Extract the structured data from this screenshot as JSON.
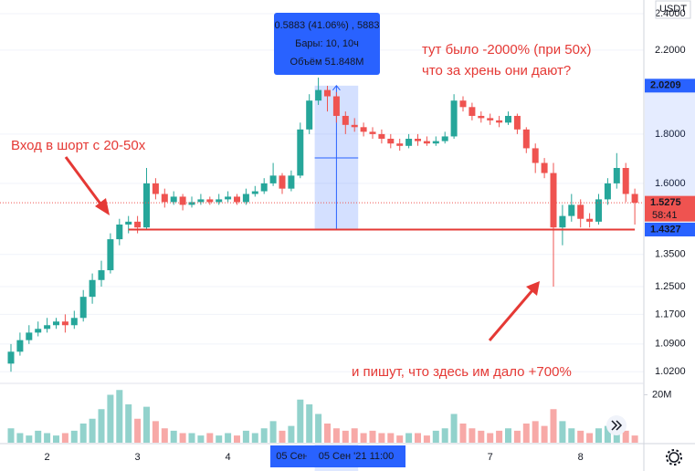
{
  "chart_data": {
    "type": "candlestick",
    "currency": "USDT",
    "categories": [
      null,
      null,
      null,
      null,
      "2",
      null,
      null,
      null,
      null,
      null,
      null,
      null,
      null,
      null,
      "3",
      null,
      null,
      null,
      null,
      null,
      null,
      null,
      null,
      null,
      "4",
      null,
      null,
      null,
      null,
      null,
      null,
      null,
      null,
      null,
      null,
      null,
      null,
      null,
      null,
      null,
      null,
      null,
      null,
      null,
      null,
      null,
      null,
      null,
      null,
      null,
      null,
      null,
      null,
      "7",
      null,
      null,
      null,
      null,
      null,
      null,
      null,
      null,
      null,
      "8",
      null,
      null,
      null,
      null,
      null,
      null
    ],
    "up_color": "#26a69a",
    "down_color": "#ef5350",
    "open": [
      1.04,
      1.07,
      1.1,
      1.12,
      1.13,
      1.14,
      1.15,
      1.14,
      1.16,
      1.22,
      1.27,
      1.3,
      1.4,
      1.45,
      1.46,
      1.44,
      1.6,
      1.56,
      1.53,
      1.55,
      1.52,
      1.53,
      1.54,
      1.53,
      1.54,
      1.55,
      1.53,
      1.56,
      1.57,
      1.6,
      1.63,
      1.58,
      1.63,
      1.82,
      1.95,
      2.0,
      1.97,
      1.88,
      1.84,
      1.83,
      1.81,
      1.8,
      1.78,
      1.76,
      1.75,
      1.78,
      1.77,
      1.76,
      1.77,
      1.79,
      1.95,
      1.92,
      1.88,
      1.87,
      1.86,
      1.85,
      1.88,
      1.82,
      1.74,
      1.68,
      1.64,
      1.44,
      1.48,
      1.52,
      1.47,
      1.46,
      1.54,
      1.6,
      1.66,
      1.56
    ],
    "high": [
      1.09,
      1.12,
      1.14,
      1.15,
      1.16,
      1.16,
      1.17,
      1.18,
      1.24,
      1.29,
      1.33,
      1.42,
      1.47,
      1.48,
      1.48,
      1.66,
      1.62,
      1.58,
      1.57,
      1.56,
      1.55,
      1.56,
      1.55,
      1.56,
      1.57,
      1.56,
      1.58,
      1.59,
      1.62,
      1.68,
      1.64,
      1.65,
      1.85,
      1.98,
      2.06,
      2.02,
      1.99,
      1.9,
      1.87,
      1.85,
      1.83,
      1.82,
      1.8,
      1.78,
      1.8,
      1.8,
      1.79,
      1.79,
      1.81,
      1.98,
      1.97,
      1.94,
      1.9,
      1.89,
      1.88,
      1.9,
      1.89,
      1.83,
      1.76,
      1.7,
      1.68,
      1.52,
      1.56,
      1.54,
      1.49,
      1.56,
      1.62,
      1.72,
      1.68,
      1.58
    ],
    "low": [
      1.02,
      1.06,
      1.09,
      1.11,
      1.12,
      1.13,
      1.12,
      1.13,
      1.15,
      1.2,
      1.25,
      1.29,
      1.38,
      1.42,
      1.42,
      1.43,
      1.54,
      1.51,
      1.52,
      1.5,
      1.51,
      1.52,
      1.52,
      1.52,
      1.53,
      1.52,
      1.52,
      1.55,
      1.56,
      1.59,
      1.56,
      1.57,
      1.62,
      1.8,
      1.93,
      1.9,
      1.85,
      1.8,
      1.81,
      1.79,
      1.78,
      1.76,
      1.74,
      1.73,
      1.74,
      1.75,
      1.75,
      1.75,
      1.76,
      1.78,
      1.9,
      1.86,
      1.85,
      1.84,
      1.83,
      1.84,
      1.8,
      1.72,
      1.64,
      1.62,
      1.25,
      1.38,
      1.46,
      1.44,
      1.44,
      1.45,
      1.52,
      1.58,
      1.53,
      1.45
    ],
    "close": [
      1.07,
      1.1,
      1.12,
      1.13,
      1.14,
      1.15,
      1.14,
      1.16,
      1.22,
      1.27,
      1.3,
      1.4,
      1.45,
      1.46,
      1.44,
      1.6,
      1.56,
      1.53,
      1.55,
      1.52,
      1.53,
      1.54,
      1.53,
      1.54,
      1.55,
      1.53,
      1.56,
      1.57,
      1.6,
      1.63,
      1.58,
      1.63,
      1.82,
      1.95,
      2.0,
      1.97,
      1.88,
      1.84,
      1.83,
      1.81,
      1.8,
      1.78,
      1.76,
      1.75,
      1.78,
      1.77,
      1.76,
      1.77,
      1.79,
      1.95,
      1.92,
      1.88,
      1.87,
      1.86,
      1.85,
      1.88,
      1.82,
      1.74,
      1.68,
      1.64,
      1.44,
      1.48,
      1.52,
      1.47,
      1.46,
      1.54,
      1.6,
      1.66,
      1.56,
      1.5275
    ],
    "volume": [
      6,
      4,
      3,
      5,
      4,
      3,
      4,
      5,
      8,
      10,
      14,
      20,
      22,
      16,
      10,
      15,
      9,
      6,
      5,
      4,
      4,
      3,
      4,
      3,
      4,
      3,
      5,
      4,
      6,
      9,
      5,
      7,
      18,
      16,
      12,
      8,
      6,
      5,
      6,
      4,
      5,
      4,
      4,
      3,
      4,
      4,
      3,
      5,
      6,
      12,
      8,
      6,
      5,
      4,
      5,
      6,
      5,
      8,
      9,
      7,
      14,
      9,
      6,
      5,
      4,
      6,
      7,
      9,
      5,
      3
    ],
    "log_scale": true,
    "ylim": [
      0.992,
      2.48
    ],
    "yticks": [
      {
        "value": 1.02,
        "label": "1.0200"
      },
      {
        "value": 1.09,
        "label": "1.0900"
      },
      {
        "value": 1.17,
        "label": "1.1700"
      },
      {
        "value": 1.25,
        "label": "1.2500"
      },
      {
        "value": 1.35,
        "label": "1.3500"
      },
      {
        "value": 1.6,
        "label": "1.6000"
      },
      {
        "value": 1.8,
        "label": "1.8000"
      },
      {
        "value": 2.2,
        "label": "2.2000"
      },
      {
        "value": 2.4,
        "label": "2.4000"
      }
    ],
    "volume_lim": [
      0,
      24
    ],
    "volume_ticks": [
      {
        "value": 20,
        "label": "20M"
      }
    ],
    "grid": true,
    "price_labels": [
      {
        "value": 2.0209,
        "color": "#2962ff"
      },
      {
        "value": 1.5275,
        "color": "#ef5350"
      },
      {
        "value": 1.4327,
        "color": "#2962ff"
      }
    ],
    "countdown": "58:41",
    "crosshair": {
      "start_label": "05 Сен",
      "label": "05 Сен '21  11:00"
    },
    "measure": {
      "lines": [
        "0.5883 (41.06%) , 5883",
        "Бары: 10, 10ч",
        "Объём 51.848M"
      ]
    },
    "annotations": [
      "Вход в шорт с 20-50x",
      "тут было -2000% (при 50x)",
      "что за хрень они дают?",
      "и пишут, что здесь им дало +700%"
    ]
  }
}
